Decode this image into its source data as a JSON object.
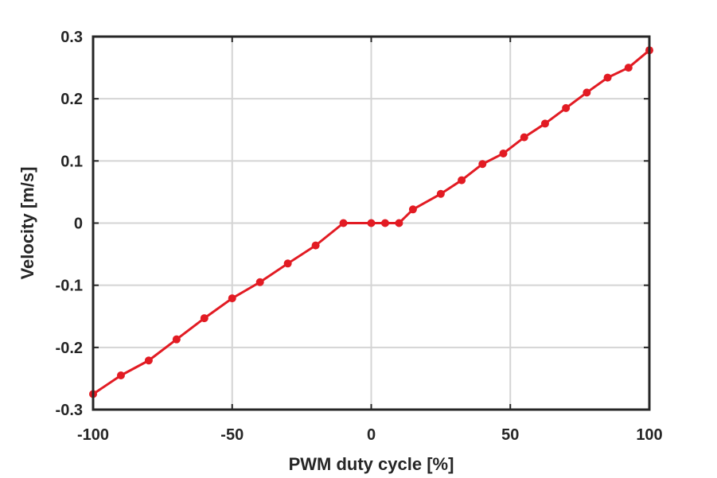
{
  "chart_data": {
    "type": "line",
    "xlabel": "PWM duty cycle [%]",
    "ylabel": "Velocity [m/s]",
    "xlim": [
      -100,
      100
    ],
    "ylim": [
      -0.3,
      0.3
    ],
    "xticks": [
      -100,
      -50,
      0,
      50,
      100
    ],
    "xtick_labels": [
      "-100",
      "-50",
      "0",
      "50",
      "100"
    ],
    "yticks": [
      -0.3,
      -0.2,
      -0.1,
      0,
      0.1,
      0.2,
      0.3
    ],
    "ytick_labels": [
      "-0.3",
      "-0.2",
      "-0.1",
      "0",
      "0.1",
      "0.2",
      "0.3"
    ],
    "grid": true,
    "series": [
      {
        "color": "#e21b23",
        "x": [
          -100,
          -90,
          -80,
          -70,
          -60,
          -50,
          -40,
          -30,
          -20,
          -10,
          0,
          5,
          10,
          15,
          25,
          32.5,
          40,
          47.5,
          55,
          62.5,
          70,
          77.5,
          85,
          92.5,
          100
        ],
        "y": [
          -0.275,
          -0.245,
          -0.221,
          -0.187,
          -0.153,
          -0.121,
          -0.095,
          -0.065,
          -0.036,
          0.0,
          0.0,
          0.0,
          0.0,
          0.022,
          0.047,
          0.069,
          0.095,
          0.112,
          0.138,
          0.16,
          0.185,
          0.21,
          0.234,
          0.25,
          0.278
        ]
      }
    ]
  }
}
